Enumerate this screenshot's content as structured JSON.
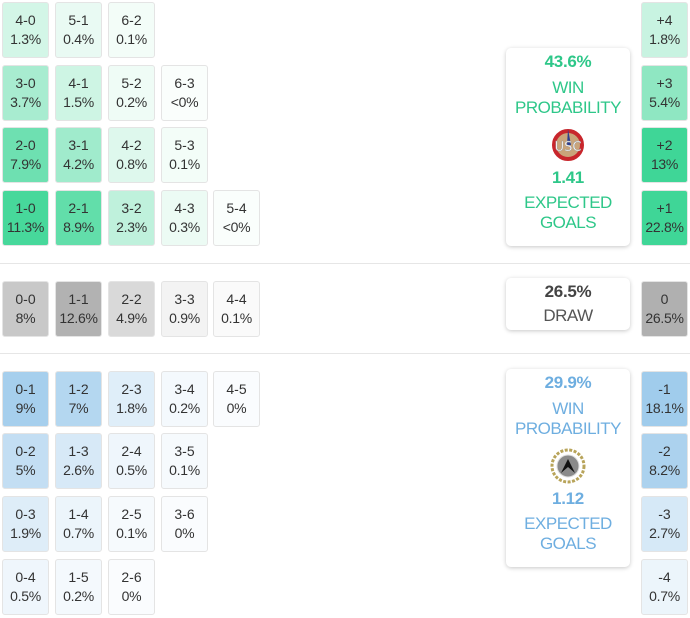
{
  "home_team": {
    "win_probability": "43.6%",
    "win_label_1": "WIN",
    "win_label_2": "PROBABILITY",
    "expected_goals": "1.41",
    "xg_label_1": "EXPECTED",
    "xg_label_2": "GOALS",
    "logo_icon": "cremonese-crest-icon",
    "color": "#2ec789"
  },
  "draw": {
    "probability": "26.5%",
    "label": "DRAW"
  },
  "away_team": {
    "win_probability": "29.9%",
    "win_label_1": "WIN",
    "win_label_2": "PROBABILITY",
    "expected_goals": "1.12",
    "xg_label_1": "EXPECTED",
    "xg_label_2": "GOALS",
    "logo_icon": "udinese-crest-icon",
    "color": "#6eaee0"
  },
  "home_scores": [
    [
      {
        "s": "4-0",
        "p": "1.3%"
      },
      {
        "s": "5-1",
        "p": "0.4%"
      },
      {
        "s": "6-2",
        "p": "0.1%"
      }
    ],
    [
      {
        "s": "3-0",
        "p": "3.7%"
      },
      {
        "s": "4-1",
        "p": "1.5%"
      },
      {
        "s": "5-2",
        "p": "0.2%"
      },
      {
        "s": "6-3",
        "p": "<0%"
      }
    ],
    [
      {
        "s": "2-0",
        "p": "7.9%"
      },
      {
        "s": "3-1",
        "p": "4.2%"
      },
      {
        "s": "4-2",
        "p": "0.8%"
      },
      {
        "s": "5-3",
        "p": "0.1%"
      }
    ],
    [
      {
        "s": "1-0",
        "p": "11.3%"
      },
      {
        "s": "2-1",
        "p": "8.9%"
      },
      {
        "s": "3-2",
        "p": "2.3%"
      },
      {
        "s": "4-3",
        "p": "0.3%"
      },
      {
        "s": "5-4",
        "p": "<0%"
      }
    ]
  ],
  "draw_scores": [
    {
      "s": "0-0",
      "p": "8%"
    },
    {
      "s": "1-1",
      "p": "12.6%"
    },
    {
      "s": "2-2",
      "p": "4.9%"
    },
    {
      "s": "3-3",
      "p": "0.9%"
    },
    {
      "s": "4-4",
      "p": "0.1%"
    }
  ],
  "away_scores": [
    [
      {
        "s": "0-1",
        "p": "9%"
      },
      {
        "s": "1-2",
        "p": "7%"
      },
      {
        "s": "2-3",
        "p": "1.8%"
      },
      {
        "s": "3-4",
        "p": "0.2%"
      },
      {
        "s": "4-5",
        "p": "0%"
      }
    ],
    [
      {
        "s": "0-2",
        "p": "5%"
      },
      {
        "s": "1-3",
        "p": "2.6%"
      },
      {
        "s": "2-4",
        "p": "0.5%"
      },
      {
        "s": "3-5",
        "p": "0.1%"
      }
    ],
    [
      {
        "s": "0-3",
        "p": "1.9%"
      },
      {
        "s": "1-4",
        "p": "0.7%"
      },
      {
        "s": "2-5",
        "p": "0.1%"
      },
      {
        "s": "3-6",
        "p": "0%"
      }
    ],
    [
      {
        "s": "0-4",
        "p": "0.5%"
      },
      {
        "s": "1-5",
        "p": "0.2%"
      },
      {
        "s": "2-6",
        "p": "0%"
      }
    ]
  ],
  "margins": {
    "home": [
      {
        "s": "+4",
        "p": "1.8%"
      },
      {
        "s": "+3",
        "p": "5.4%"
      },
      {
        "s": "+2",
        "p": "13%"
      },
      {
        "s": "+1",
        "p": "22.8%"
      }
    ],
    "draw": {
      "s": "0",
      "p": "26.5%"
    },
    "away": [
      {
        "s": "-1",
        "p": "18.1%"
      },
      {
        "s": "-2",
        "p": "8.2%"
      },
      {
        "s": "-3",
        "p": "2.7%"
      },
      {
        "s": "-4",
        "p": "0.7%"
      }
    ]
  }
}
